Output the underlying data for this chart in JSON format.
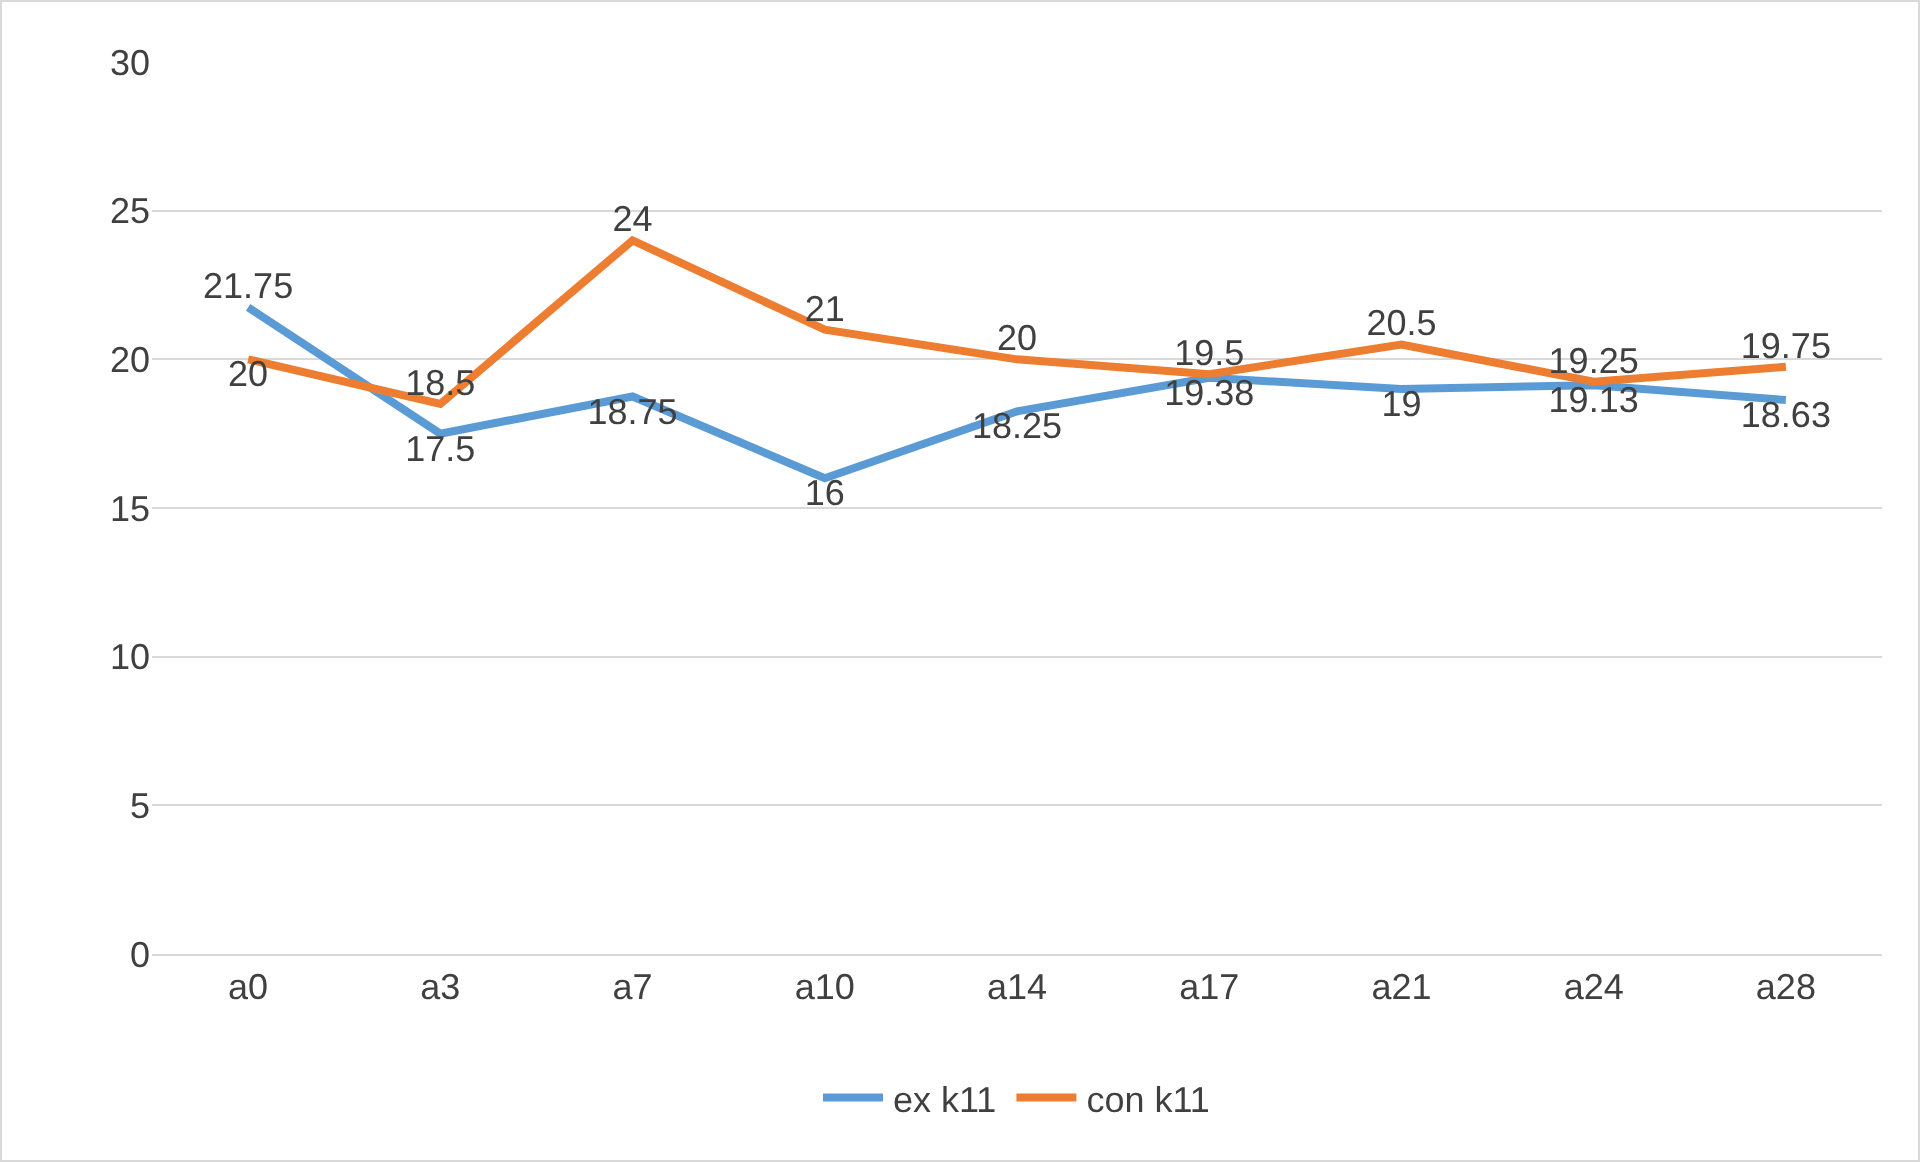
{
  "chart_data": {
    "type": "line",
    "categories": [
      "a0",
      "a3",
      "a7",
      "a10",
      "a14",
      "a17",
      "a21",
      "a24",
      "a28"
    ],
    "series": [
      {
        "name": "ex k11",
        "color": "#5b9bd5",
        "values": [
          21.75,
          17.5,
          18.75,
          16,
          18.25,
          19.38,
          19,
          19.13,
          18.63
        ]
      },
      {
        "name": "con k11",
        "color": "#ed7d31",
        "values": [
          20,
          18.5,
          24,
          21,
          20,
          19.5,
          20.5,
          19.25,
          19.75
        ]
      }
    ],
    "ylim": [
      0,
      30
    ],
    "yticks": [
      0,
      5,
      10,
      15,
      20,
      25,
      30
    ],
    "grid": "y",
    "legend": "bottom",
    "data_labels": true,
    "marker": "none",
    "line_style": "solid"
  }
}
